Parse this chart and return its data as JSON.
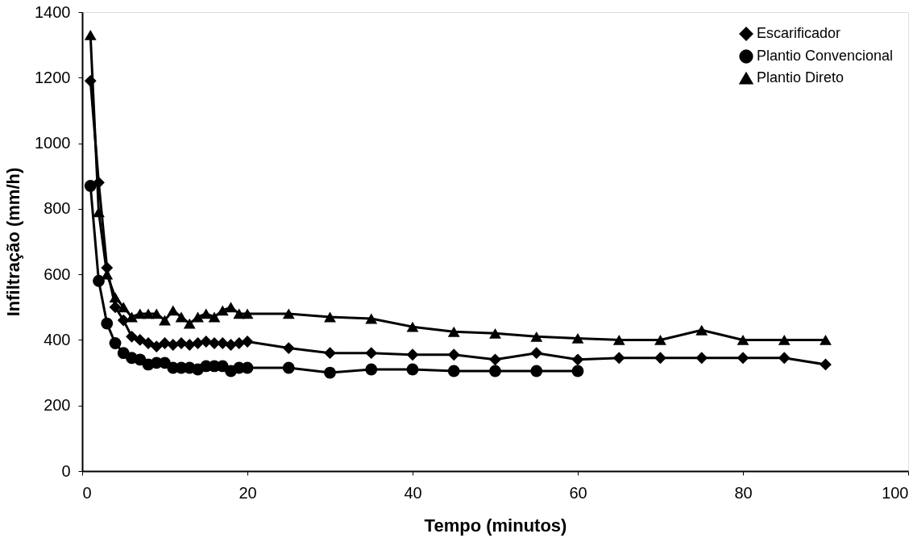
{
  "chart_data": {
    "type": "line",
    "xlabel": "Tempo (minutos)",
    "ylabel": "Infiltração (mm/h)",
    "xlim": [
      0,
      100
    ],
    "xticks": [
      0,
      20,
      40,
      60,
      80,
      100
    ],
    "ylim": [
      0,
      1400
    ],
    "yticks": [
      0,
      200,
      400,
      600,
      800,
      1000,
      1200,
      1400
    ],
    "grid": false,
    "legend": "top right",
    "line_style": "solid",
    "series": [
      {
        "name": "Escarificador",
        "color": "#000000",
        "marker": "diamond",
        "x": [
          1,
          2,
          3,
          4,
          5,
          6,
          7,
          8,
          9,
          10,
          11,
          12,
          13,
          14,
          15,
          16,
          17,
          18,
          19,
          20,
          25,
          30,
          35,
          40,
          45,
          50,
          55,
          60,
          65,
          70,
          75,
          80,
          85,
          90
        ],
        "values": [
          1190,
          880,
          620,
          500,
          460,
          410,
          400,
          390,
          380,
          390,
          385,
          390,
          385,
          390,
          395,
          390,
          390,
          385,
          390,
          395,
          375,
          360,
          360,
          355,
          355,
          340,
          360,
          340,
          345,
          345,
          345,
          345,
          345,
          325
        ]
      },
      {
        "name": "Plantio Convencional",
        "color": "#000000",
        "marker": "circle",
        "x": [
          1,
          2,
          3,
          4,
          5,
          6,
          7,
          8,
          9,
          10,
          11,
          12,
          13,
          14,
          15,
          16,
          17,
          18,
          19,
          20,
          25,
          30,
          35,
          40,
          45,
          50,
          55,
          60
        ],
        "values": [
          870,
          580,
          450,
          390,
          360,
          345,
          340,
          325,
          330,
          330,
          315,
          315,
          315,
          310,
          320,
          320,
          320,
          305,
          315,
          315,
          315,
          300,
          310,
          310,
          305,
          305,
          305,
          305
        ]
      },
      {
        "name": "Plantio Direto",
        "color": "#000000",
        "marker": "triangle",
        "x": [
          1,
          2,
          3,
          4,
          5,
          6,
          7,
          8,
          9,
          10,
          11,
          12,
          13,
          14,
          15,
          16,
          17,
          18,
          19,
          20,
          25,
          30,
          35,
          40,
          45,
          50,
          55,
          60,
          65,
          70,
          75,
          80,
          85,
          90
        ],
        "values": [
          1330,
          790,
          600,
          530,
          500,
          470,
          480,
          480,
          480,
          460,
          490,
          470,
          450,
          470,
          480,
          470,
          490,
          500,
          480,
          480,
          480,
          470,
          465,
          440,
          425,
          420,
          410,
          405,
          400,
          400,
          430,
          400,
          400,
          400
        ]
      }
    ]
  }
}
